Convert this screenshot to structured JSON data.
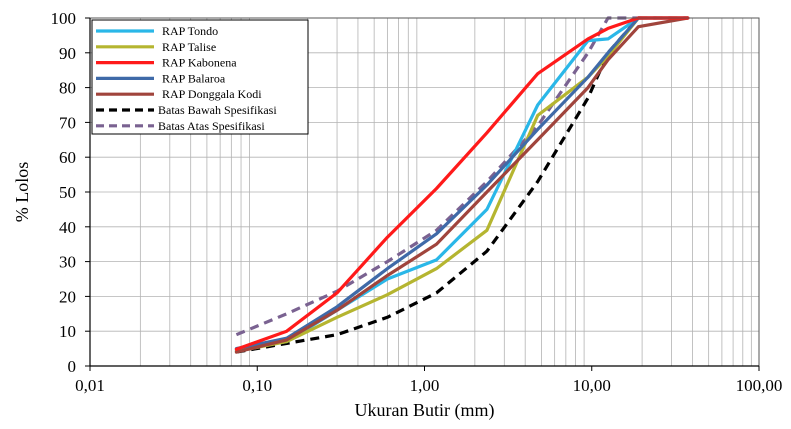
{
  "chart_data": {
    "type": "line",
    "title": "",
    "xlabel": "Ukuran Butir (mm)",
    "ylabel": "% Lolos",
    "xscale": "log",
    "xlim": [
      0.01,
      100
    ],
    "ylim": [
      0,
      100
    ],
    "grid": true,
    "legend_position": "top-left",
    "x_tick_labels": [
      "0,01",
      "0,10",
      "1,00",
      "10,00",
      "100,00"
    ],
    "y_tick_labels": [
      "0",
      "10",
      "20",
      "30",
      "40",
      "50",
      "60",
      "70",
      "80",
      "90",
      "100"
    ],
    "x": [
      0.075,
      0.15,
      0.3,
      0.6,
      1.18,
      2.36,
      4.75,
      9.5,
      12.5,
      19,
      37.5
    ],
    "series": [
      {
        "name": "RAP Tondo",
        "color": "#2ab7e8",
        "dash": "solid",
        "values": [
          4.5,
          7,
          16,
          25,
          30.5,
          45,
          75,
          93.5,
          94,
          100,
          100
        ]
      },
      {
        "name": "RAP Talise",
        "color": "#b5b530",
        "dash": "solid",
        "values": [
          4.2,
          7,
          14,
          20.5,
          28,
          39,
          72,
          83,
          89,
          100,
          100
        ]
      },
      {
        "name": "RAP Kabonena",
        "color": "#ff1a1a",
        "dash": "solid",
        "values": [
          4.8,
          10,
          21,
          37,
          51,
          67,
          84,
          94,
          97,
          100,
          100
        ]
      },
      {
        "name": "RAP Balaroa",
        "color": "#3f6aa8",
        "dash": "solid",
        "values": [
          5,
          8,
          17,
          28,
          38,
          52,
          68,
          83,
          90,
          100,
          100
        ]
      },
      {
        "name": "RAP Donggala Kodi",
        "color": "#a0443c",
        "dash": "solid",
        "values": [
          4,
          7.5,
          16,
          26,
          35,
          50,
          65,
          80,
          88,
          97.5,
          100
        ]
      },
      {
        "name": "Batas Bawah Spesifikasi",
        "color": "#000000",
        "dash": "dashed",
        "values": [
          4,
          6.5,
          9,
          14,
          21,
          33,
          53,
          77,
          90,
          100,
          100
        ]
      },
      {
        "name": "Batas Atas Spesifikasi",
        "color": "#7a6291",
        "dash": "dashed",
        "values": [
          9,
          15,
          21.5,
          30,
          39,
          53,
          69,
          90,
          100,
          100,
          100
        ]
      }
    ]
  }
}
